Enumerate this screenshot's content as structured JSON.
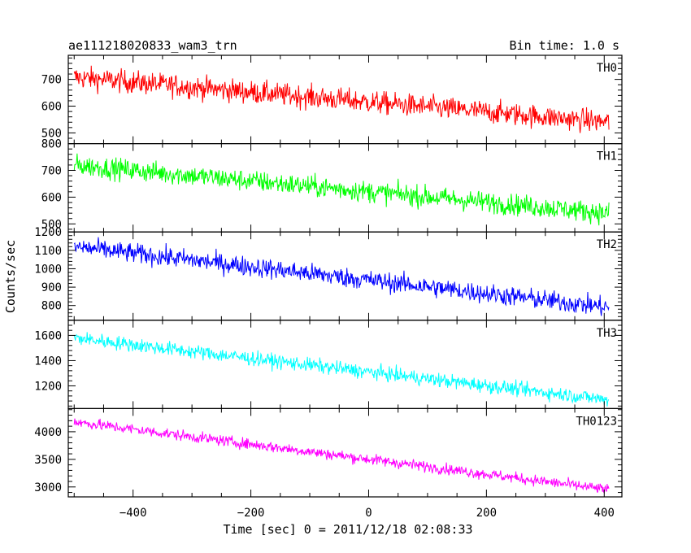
{
  "chart_data": {
    "type": "line",
    "title": "ae111218020833_wam3_trn",
    "subtitle": "Bin time: 1.0 s",
    "xlabel": "Time [sec] 0 = 2011/12/18 02:08:33",
    "ylabel": "Counts/sec",
    "xlim": [
      -510,
      430
    ],
    "x_ticks": [
      -400,
      -200,
      0,
      200,
      400
    ],
    "x_range": [
      -500,
      408
    ],
    "bin_seconds": 1.0,
    "grid": false,
    "panels": [
      {
        "name": "TH0",
        "color": "#ff0000",
        "ylim": [
          460,
          790
        ],
        "y_ticks": [
          500,
          600,
          700
        ],
        "trend_start": 708,
        "trend_end": 540,
        "noise": 30
      },
      {
        "name": "TH1",
        "color": "#00ff00",
        "ylim": [
          470,
          800
        ],
        "y_ticks": [
          500,
          600,
          700,
          800
        ],
        "trend_start": 720,
        "trend_end": 540,
        "noise": 28
      },
      {
        "name": "TH2",
        "color": "#0000ff",
        "ylim": [
          720,
          1200
        ],
        "y_ticks": [
          800,
          900,
          1000,
          1100,
          1200
        ],
        "trend_start": 1120,
        "trend_end": 790,
        "noise": 38
      },
      {
        "name": "TH3",
        "color": "#00ffff",
        "ylim": [
          1020,
          1720
        ],
        "y_ticks": [
          1200,
          1400,
          1600
        ],
        "trend_start": 1580,
        "trend_end": 1090,
        "noise": 40
      },
      {
        "name": "TH0123",
        "color": "#ff00ff",
        "ylim": [
          2820,
          4420
        ],
        "y_ticks": [
          3000,
          3500,
          4000
        ],
        "trend_start": 4180,
        "trend_end": 2950,
        "noise": 70
      }
    ]
  }
}
